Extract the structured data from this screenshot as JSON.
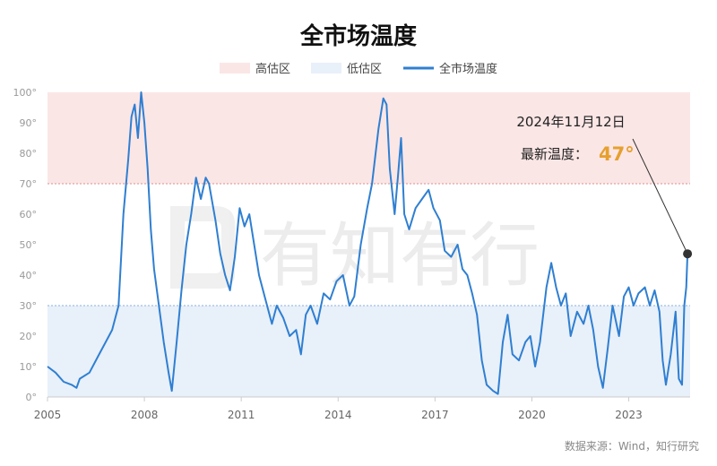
{
  "chart_data": {
    "type": "line",
    "title": "全市场温度",
    "legend": {
      "placement": "top-center",
      "items": [
        {
          "label": "高估区",
          "kind": "band",
          "color": "#fbe6e6"
        },
        {
          "label": "低估区",
          "kind": "band",
          "color": "#e8f0fa"
        },
        {
          "label": "全市场温度",
          "kind": "line",
          "color": "#2f7fd1"
        }
      ]
    },
    "x_ticks": [
      "2005",
      "2008",
      "2011",
      "2014",
      "2017",
      "2020",
      "2023"
    ],
    "xlim": [
      2005.0,
      2024.9
    ],
    "y_ticks": [
      "0°",
      "10°",
      "20°",
      "30°",
      "40°",
      "50°",
      "60°",
      "70°",
      "80°",
      "90°",
      "100°"
    ],
    "ylim": [
      0,
      100
    ],
    "grid": false,
    "bands": [
      {
        "name": "高估区",
        "from": 70,
        "to": 100,
        "color": "#fbe6e6"
      },
      {
        "name": "低估区",
        "from": 0,
        "to": 30,
        "color": "#e8f0fa"
      }
    ],
    "series": [
      {
        "name": "全市场温度",
        "color": "#2f7fd1",
        "points": [
          [
            2005.0,
            10
          ],
          [
            2005.25,
            8
          ],
          [
            2005.5,
            5
          ],
          [
            2005.75,
            4
          ],
          [
            2005.9,
            3
          ],
          [
            2006.0,
            6
          ],
          [
            2006.3,
            8
          ],
          [
            2006.6,
            14
          ],
          [
            2006.9,
            20
          ],
          [
            2007.0,
            22
          ],
          [
            2007.2,
            30
          ],
          [
            2007.35,
            60
          ],
          [
            2007.5,
            78
          ],
          [
            2007.6,
            92
          ],
          [
            2007.7,
            96
          ],
          [
            2007.8,
            85
          ],
          [
            2007.9,
            100
          ],
          [
            2008.0,
            90
          ],
          [
            2008.1,
            75
          ],
          [
            2008.2,
            55
          ],
          [
            2008.3,
            42
          ],
          [
            2008.45,
            30
          ],
          [
            2008.6,
            18
          ],
          [
            2008.75,
            8
          ],
          [
            2008.85,
            2
          ],
          [
            2009.0,
            18
          ],
          [
            2009.15,
            35
          ],
          [
            2009.3,
            50
          ],
          [
            2009.45,
            60
          ],
          [
            2009.6,
            72
          ],
          [
            2009.75,
            65
          ],
          [
            2009.9,
            72
          ],
          [
            2010.0,
            70
          ],
          [
            2010.2,
            58
          ],
          [
            2010.35,
            47
          ],
          [
            2010.5,
            40
          ],
          [
            2010.65,
            35
          ],
          [
            2010.8,
            46
          ],
          [
            2010.95,
            62
          ],
          [
            2011.1,
            56
          ],
          [
            2011.25,
            60
          ],
          [
            2011.4,
            50
          ],
          [
            2011.55,
            40
          ],
          [
            2011.75,
            32
          ],
          [
            2011.95,
            24
          ],
          [
            2012.1,
            30
          ],
          [
            2012.3,
            26
          ],
          [
            2012.5,
            20
          ],
          [
            2012.7,
            22
          ],
          [
            2012.85,
            14
          ],
          [
            2013.0,
            27
          ],
          [
            2013.15,
            30
          ],
          [
            2013.35,
            24
          ],
          [
            2013.55,
            34
          ],
          [
            2013.75,
            32
          ],
          [
            2013.95,
            38
          ],
          [
            2014.15,
            40
          ],
          [
            2014.35,
            30
          ],
          [
            2014.5,
            33
          ],
          [
            2014.7,
            50
          ],
          [
            2014.9,
            62
          ],
          [
            2015.05,
            70
          ],
          [
            2015.25,
            88
          ],
          [
            2015.4,
            98
          ],
          [
            2015.5,
            96
          ],
          [
            2015.6,
            75
          ],
          [
            2015.75,
            60
          ],
          [
            2015.85,
            72
          ],
          [
            2015.95,
            85
          ],
          [
            2016.05,
            60
          ],
          [
            2016.2,
            55
          ],
          [
            2016.4,
            62
          ],
          [
            2016.6,
            65
          ],
          [
            2016.8,
            68
          ],
          [
            2016.95,
            62
          ],
          [
            2017.15,
            58
          ],
          [
            2017.3,
            48
          ],
          [
            2017.5,
            46
          ],
          [
            2017.7,
            50
          ],
          [
            2017.85,
            42
          ],
          [
            2018.0,
            40
          ],
          [
            2018.15,
            34
          ],
          [
            2018.3,
            27
          ],
          [
            2018.45,
            12
          ],
          [
            2018.6,
            4
          ],
          [
            2018.8,
            2
          ],
          [
            2018.95,
            1
          ],
          [
            2019.1,
            18
          ],
          [
            2019.25,
            27
          ],
          [
            2019.4,
            14
          ],
          [
            2019.6,
            12
          ],
          [
            2019.8,
            18
          ],
          [
            2019.95,
            20
          ],
          [
            2020.1,
            10
          ],
          [
            2020.25,
            18
          ],
          [
            2020.45,
            36
          ],
          [
            2020.6,
            44
          ],
          [
            2020.75,
            36
          ],
          [
            2020.9,
            30
          ],
          [
            2021.05,
            34
          ],
          [
            2021.2,
            20
          ],
          [
            2021.4,
            28
          ],
          [
            2021.6,
            24
          ],
          [
            2021.75,
            30
          ],
          [
            2021.9,
            22
          ],
          [
            2022.05,
            10
          ],
          [
            2022.2,
            3
          ],
          [
            2022.35,
            16
          ],
          [
            2022.5,
            30
          ],
          [
            2022.7,
            20
          ],
          [
            2022.85,
            33
          ],
          [
            2023.0,
            36
          ],
          [
            2023.15,
            30
          ],
          [
            2023.3,
            34
          ],
          [
            2023.5,
            36
          ],
          [
            2023.65,
            30
          ],
          [
            2023.8,
            35
          ],
          [
            2023.95,
            28
          ],
          [
            2024.05,
            12
          ],
          [
            2024.15,
            4
          ],
          [
            2024.3,
            14
          ],
          [
            2024.45,
            28
          ],
          [
            2024.55,
            6
          ],
          [
            2024.65,
            4
          ],
          [
            2024.72,
            30
          ],
          [
            2024.78,
            36
          ],
          [
            2024.82,
            47
          ]
        ]
      }
    ],
    "annotation": {
      "date": "2024年11月12日",
      "label": "最新温度：",
      "value": "47°",
      "value_color": "#e6a02e",
      "point": [
        2024.82,
        47
      ]
    },
    "watermark": "有知有行",
    "source": "数据来源：Wind，知行研究"
  }
}
